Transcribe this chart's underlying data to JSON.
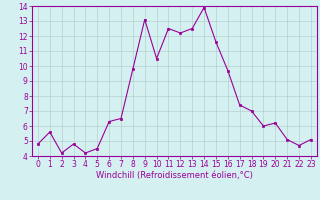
{
  "x": [
    0,
    1,
    2,
    3,
    4,
    5,
    6,
    7,
    8,
    9,
    10,
    11,
    12,
    13,
    14,
    15,
    16,
    17,
    18,
    19,
    20,
    21,
    22,
    23
  ],
  "y": [
    4.8,
    5.6,
    4.2,
    4.8,
    4.2,
    4.5,
    6.3,
    6.5,
    9.8,
    13.1,
    10.5,
    12.5,
    12.2,
    12.5,
    13.9,
    11.6,
    9.7,
    7.4,
    7.0,
    6.0,
    6.2,
    5.1,
    4.7,
    5.1
  ],
  "line_color": "#990099",
  "marker": "s",
  "marker_size": 2,
  "bg_color": "#d4f0f0",
  "grid_color": "#b0c8c8",
  "xlabel": "Windchill (Refroidissement éolien,°C)",
  "xlabel_color": "#990099",
  "tick_color": "#990099",
  "xlim": [
    -0.5,
    23.5
  ],
  "ylim": [
    4,
    14
  ],
  "yticks": [
    4,
    5,
    6,
    7,
    8,
    9,
    10,
    11,
    12,
    13,
    14
  ],
  "xticks": [
    0,
    1,
    2,
    3,
    4,
    5,
    6,
    7,
    8,
    9,
    10,
    11,
    12,
    13,
    14,
    15,
    16,
    17,
    18,
    19,
    20,
    21,
    22,
    23
  ],
  "spine_color": "#990099",
  "tick_fontsize": 5.5,
  "xlabel_fontsize": 6.0,
  "linewidth": 0.8
}
